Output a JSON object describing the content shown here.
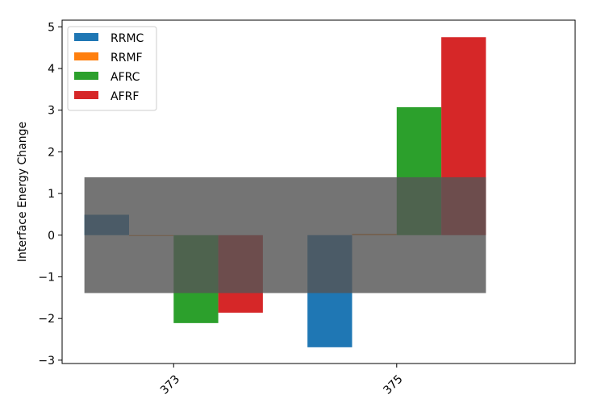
{
  "chart_data": {
    "type": "bar",
    "title": "",
    "xlabel": "",
    "ylabel": "Interface Energy Change",
    "categories": [
      "373",
      "375"
    ],
    "series": [
      {
        "name": "RRMC",
        "color": "#1f77b4",
        "values": [
          0.49,
          -2.69
        ]
      },
      {
        "name": "RRMF",
        "color": "#ff7f0e",
        "values": [
          -0.02,
          0.03
        ]
      },
      {
        "name": "AFRC",
        "color": "#2ca02c",
        "values": [
          -2.11,
          3.07
        ]
      },
      {
        "name": "AFRF",
        "color": "#d62728",
        "values": [
          -1.86,
          4.75
        ]
      }
    ],
    "ylim": [
      -3.08,
      5.16
    ],
    "yticks": [
      -3,
      -2,
      -1,
      0,
      1,
      2,
      3,
      4,
      5
    ],
    "shaded_band": {
      "from": -1.39,
      "to": 1.39,
      "color": "#555555",
      "opacity": 0.82
    },
    "legend": "top-left",
    "grid": false
  }
}
